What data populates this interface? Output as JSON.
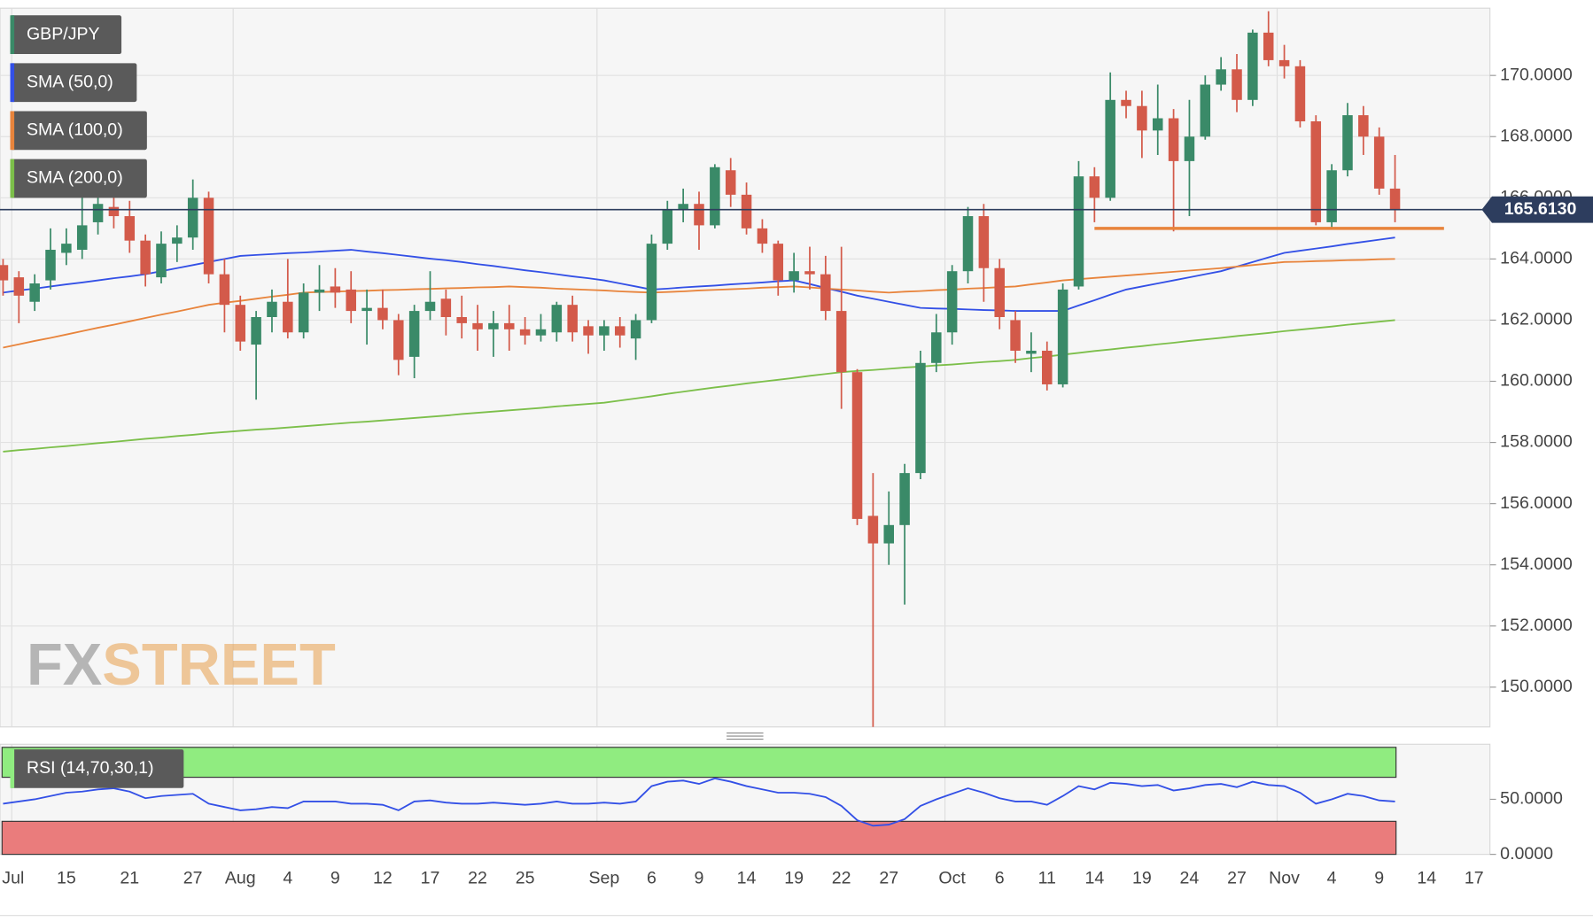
{
  "chart_data": [
    {
      "type": "candlestick",
      "name": "GBP/JPY",
      "up_color": "#3a8a68",
      "down_color": "#d35a4a",
      "categories": [
        null,
        "Jul",
        null,
        null,
        "15",
        null,
        null,
        null,
        "21",
        null,
        null,
        null,
        "27",
        null,
        null,
        "Aug",
        null,
        null,
        "4",
        null,
        null,
        "9",
        null,
        null,
        "12",
        null,
        null,
        "17",
        null,
        null,
        "22",
        null,
        null,
        "25",
        null,
        null,
        null,
        null,
        "Sep",
        null,
        null,
        "6",
        null,
        null,
        "9",
        null,
        null,
        "14",
        null,
        null,
        "19",
        null,
        null,
        "22",
        null,
        null,
        "27",
        null,
        null,
        null,
        "Oct",
        null,
        null,
        "6",
        null,
        null,
        "11",
        null,
        null,
        "14",
        null,
        null,
        "19",
        null,
        null,
        "24",
        null,
        null,
        "27",
        null,
        null,
        "Nov",
        null,
        null,
        "4",
        null,
        null,
        "9",
        null,
        null,
        "14",
        null,
        null,
        "17"
      ],
      "open": [
        163.8,
        163.4,
        162.6,
        163.3,
        164.2,
        164.3,
        165.2,
        165.7,
        165.4,
        164.6,
        163.4,
        164.5,
        164.7,
        166.0,
        163.5,
        162.5,
        161.2,
        162.1,
        162.6,
        161.6,
        162.9,
        163.1,
        163.0,
        162.3,
        162.4,
        162.0,
        160.8,
        162.3,
        162.7,
        162.1,
        161.9,
        161.7,
        161.9,
        161.7,
        161.5,
        161.6,
        162.5,
        161.8,
        161.5,
        161.8,
        161.4,
        162.0,
        164.5,
        165.6,
        165.8,
        165.1,
        166.9,
        166.1,
        165.0,
        164.5,
        163.3,
        163.6,
        163.5,
        162.3,
        160.3,
        155.6,
        154.7,
        155.3,
        157.0,
        160.6,
        161.6,
        163.6,
        165.4,
        163.7,
        162.0,
        160.9,
        161.0,
        159.9,
        163.1,
        166.7,
        166.0,
        169.2,
        169.0,
        168.2,
        168.6,
        167.2,
        168.0,
        169.7,
        170.2,
        169.2,
        171.4,
        170.5,
        170.3,
        168.5,
        165.2,
        166.9,
        168.7,
        168.0,
        166.3,
        null,
        null,
        null,
        null,
        null
      ],
      "high": [
        164.0,
        163.6,
        163.5,
        165.0,
        165.0,
        166.3,
        166.2,
        166.6,
        165.9,
        164.8,
        164.9,
        165.1,
        166.6,
        166.2,
        164.0,
        162.8,
        162.3,
        163.0,
        164.0,
        163.2,
        163.8,
        163.7,
        163.6,
        163.0,
        163.0,
        162.2,
        162.5,
        163.6,
        163.0,
        162.8,
        162.5,
        162.3,
        162.5,
        162.1,
        162.2,
        162.6,
        162.8,
        162.0,
        162.0,
        162.1,
        162.2,
        164.8,
        165.9,
        166.3,
        166.2,
        167.1,
        167.3,
        166.5,
        165.3,
        164.6,
        164.2,
        164.4,
        164.1,
        164.4,
        160.4,
        157.0,
        156.4,
        157.3,
        161.0,
        162.2,
        163.8,
        165.7,
        165.8,
        164.0,
        162.3,
        161.6,
        161.3,
        163.2,
        167.2,
        167.0,
        170.1,
        169.5,
        169.5,
        169.7,
        168.9,
        169.2,
        170.0,
        170.6,
        170.7,
        171.5,
        172.1,
        171.0,
        170.5,
        168.7,
        167.1,
        169.1,
        169.0,
        168.3,
        167.4,
        null,
        null,
        null,
        null,
        null
      ],
      "low": [
        162.8,
        161.9,
        162.3,
        163.0,
        163.8,
        164.0,
        164.8,
        165.0,
        164.2,
        163.1,
        163.2,
        163.9,
        164.3,
        163.2,
        161.6,
        161.0,
        159.4,
        161.6,
        161.4,
        161.4,
        162.3,
        162.4,
        161.9,
        161.2,
        161.7,
        160.2,
        160.1,
        162.0,
        161.5,
        161.4,
        161.0,
        160.8,
        161.0,
        161.2,
        161.3,
        161.3,
        161.3,
        160.9,
        161.0,
        161.1,
        160.7,
        161.9,
        164.3,
        165.2,
        164.3,
        165.0,
        165.7,
        164.8,
        164.2,
        162.8,
        162.9,
        163.0,
        162.0,
        159.1,
        155.3,
        148.7,
        154.0,
        152.7,
        156.8,
        160.3,
        161.2,
        163.2,
        162.6,
        161.7,
        160.6,
        160.3,
        159.7,
        159.8,
        163.0,
        165.2,
        165.9,
        168.6,
        167.3,
        167.4,
        164.9,
        165.4,
        167.9,
        169.5,
        168.8,
        169.0,
        170.3,
        169.9,
        168.3,
        165.1,
        165.0,
        166.7,
        167.4,
        166.1,
        165.2,
        null,
        null,
        null,
        null,
        null
      ],
      "close": [
        163.3,
        162.8,
        163.2,
        164.3,
        164.5,
        165.1,
        165.8,
        165.4,
        164.6,
        163.5,
        164.5,
        164.7,
        166.0,
        163.5,
        162.5,
        161.3,
        162.1,
        162.6,
        161.6,
        162.9,
        163.0,
        162.9,
        162.3,
        162.4,
        162.0,
        160.7,
        162.3,
        162.6,
        162.1,
        161.9,
        161.7,
        161.9,
        161.7,
        161.5,
        161.7,
        162.5,
        161.6,
        161.5,
        161.8,
        161.5,
        162.0,
        164.5,
        165.6,
        165.8,
        165.1,
        167.0,
        166.1,
        165.0,
        164.5,
        163.3,
        163.6,
        163.5,
        162.3,
        160.3,
        155.5,
        154.7,
        155.3,
        157.0,
        160.6,
        161.6,
        163.6,
        165.4,
        163.7,
        162.1,
        161.0,
        161.0,
        159.9,
        163.0,
        166.7,
        166.0,
        169.2,
        169.0,
        168.2,
        168.6,
        167.2,
        168.0,
        169.7,
        170.2,
        169.2,
        171.4,
        170.5,
        170.3,
        168.5,
        165.2,
        166.9,
        168.7,
        168.0,
        166.3,
        165.6,
        null,
        null,
        null,
        null,
        null
      ],
      "series": [
        {
          "name": "SMA (50,0)",
          "color": "#3350e6",
          "values": [
            162.9,
            162.97,
            163.03,
            163.1,
            163.17,
            163.23,
            163.3,
            163.37,
            163.43,
            163.5,
            163.6,
            163.7,
            163.8,
            163.9,
            164.0,
            164.1,
            164.13,
            164.16,
            164.19,
            164.21,
            164.24,
            164.27,
            164.3,
            164.24,
            164.19,
            164.13,
            164.07,
            164.01,
            163.96,
            163.9,
            163.83,
            163.77,
            163.7,
            163.63,
            163.57,
            163.5,
            163.43,
            163.37,
            163.3,
            163.2,
            163.1,
            163.0,
            163.03,
            163.07,
            163.1,
            163.13,
            163.17,
            163.2,
            163.23,
            163.27,
            163.3,
            163.18,
            163.05,
            162.93,
            162.8,
            162.7,
            162.6,
            162.5,
            162.4,
            162.38,
            162.37,
            162.35,
            162.33,
            162.32,
            162.3,
            162.3,
            162.3,
            162.3,
            162.48,
            162.65,
            162.83,
            163.0,
            163.1,
            163.2,
            163.3,
            163.4,
            163.5,
            163.6,
            163.75,
            163.9,
            164.05,
            164.2,
            164.27,
            164.34,
            164.41,
            164.49,
            164.56,
            164.63,
            164.7,
            null,
            null,
            null,
            null,
            null
          ]
        },
        {
          "name": "SMA (100,0)",
          "color": "#e8843c",
          "values": [
            161.1,
            161.21,
            161.32,
            161.42,
            161.53,
            161.64,
            161.75,
            161.85,
            161.96,
            162.07,
            162.18,
            162.28,
            162.39,
            162.5,
            162.57,
            162.63,
            162.7,
            162.77,
            162.83,
            162.9,
            162.92,
            162.93,
            162.95,
            162.96,
            162.98,
            162.99,
            163.01,
            163.02,
            163.04,
            163.05,
            163.07,
            163.08,
            163.1,
            163.08,
            163.06,
            163.03,
            163.01,
            162.99,
            162.97,
            162.94,
            162.92,
            162.9,
            162.92,
            162.94,
            162.97,
            162.99,
            163.01,
            163.03,
            163.06,
            163.08,
            163.1,
            163.07,
            163.03,
            163.0,
            162.97,
            162.93,
            162.9,
            162.93,
            162.95,
            162.98,
            163.0,
            163.03,
            163.05,
            163.08,
            163.1,
            163.17,
            163.23,
            163.3,
            163.34,
            163.38,
            163.42,
            163.46,
            163.5,
            163.54,
            163.58,
            163.62,
            163.66,
            163.7,
            163.75,
            163.8,
            163.85,
            163.9,
            163.91,
            163.93,
            163.94,
            163.96,
            163.97,
            163.99,
            164.0,
            null,
            null,
            null,
            null,
            null
          ]
        },
        {
          "name": "SMA (200,0)",
          "color": "#7cbf4a",
          "values": [
            157.7,
            157.75,
            157.79,
            157.84,
            157.88,
            157.93,
            157.98,
            158.02,
            158.07,
            158.12,
            158.16,
            158.21,
            158.25,
            158.3,
            158.34,
            158.38,
            158.42,
            158.45,
            158.49,
            158.53,
            158.57,
            158.61,
            158.65,
            158.68,
            158.72,
            158.76,
            158.8,
            158.84,
            158.88,
            158.93,
            158.97,
            159.01,
            159.05,
            159.09,
            159.13,
            159.18,
            159.22,
            159.26,
            159.3,
            159.37,
            159.44,
            159.51,
            159.59,
            159.66,
            159.73,
            159.8,
            159.86,
            159.93,
            159.99,
            160.05,
            160.11,
            160.18,
            160.24,
            160.3,
            160.34,
            160.37,
            160.41,
            160.45,
            160.48,
            160.52,
            160.55,
            160.59,
            160.63,
            160.66,
            160.7,
            160.76,
            160.81,
            160.87,
            160.93,
            160.99,
            161.04,
            161.1,
            161.15,
            161.21,
            161.26,
            161.32,
            161.37,
            161.42,
            161.48,
            161.53,
            161.58,
            161.64,
            161.69,
            161.74,
            161.79,
            161.85,
            161.9,
            161.95,
            162.0,
            null,
            null,
            null,
            null,
            null
          ]
        }
      ],
      "support": {
        "value": 165.0,
        "color": "#e8843c"
      },
      "last_price": {
        "value": 165.613,
        "label": "165.6130",
        "color": "#2d3d5e"
      },
      "ylim": [
        148.7,
        172.2
      ],
      "yticks": [
        {
          "value": 150,
          "label": "150.0000"
        },
        {
          "value": 152,
          "label": "152.0000"
        },
        {
          "value": 154,
          "label": "154.0000"
        },
        {
          "value": 156,
          "label": "156.0000"
        },
        {
          "value": 158,
          "label": "158.0000"
        },
        {
          "value": 160,
          "label": "160.0000"
        },
        {
          "value": 162,
          "label": "162.0000"
        },
        {
          "value": 164,
          "label": "164.0000"
        },
        {
          "value": 166,
          "label": "166.0000"
        },
        {
          "value": 168,
          "label": "168.0000"
        },
        {
          "value": 170,
          "label": "170.0000"
        }
      ],
      "grid": true,
      "watermark": [
        "FX",
        "STREET"
      ]
    },
    {
      "type": "line",
      "name": "RSI (14,70,30,1)",
      "color": "#3350e6",
      "values": [
        46,
        48,
        50,
        53,
        56,
        57,
        59,
        60,
        57,
        51,
        53,
        54,
        55,
        46,
        43,
        40,
        41,
        43,
        42,
        48,
        48,
        48,
        46,
        46,
        45,
        40,
        48,
        49,
        47,
        46,
        46,
        47,
        46,
        45,
        46,
        48,
        46,
        46,
        47,
        46,
        48,
        62,
        66,
        67,
        64,
        69,
        66,
        62,
        59,
        56,
        56,
        55,
        52,
        44,
        31,
        26,
        27,
        32,
        44,
        50,
        55,
        60,
        56,
        51,
        48,
        48,
        45,
        53,
        62,
        59,
        65,
        64,
        62,
        63,
        58,
        60,
        63,
        64,
        61,
        66,
        63,
        62,
        56,
        46,
        50,
        55,
        53,
        49,
        48,
        null,
        null,
        null,
        null,
        null
      ],
      "overbought": {
        "value": 70,
        "color": "#90ec80"
      },
      "oversold": {
        "value": 30,
        "color": "#ea7c7c"
      },
      "ylim": [
        0,
        100
      ],
      "yticks": [
        {
          "value": 0,
          "label": "0.0000"
        },
        {
          "value": 50,
          "label": "50.0000"
        }
      ]
    }
  ]
}
